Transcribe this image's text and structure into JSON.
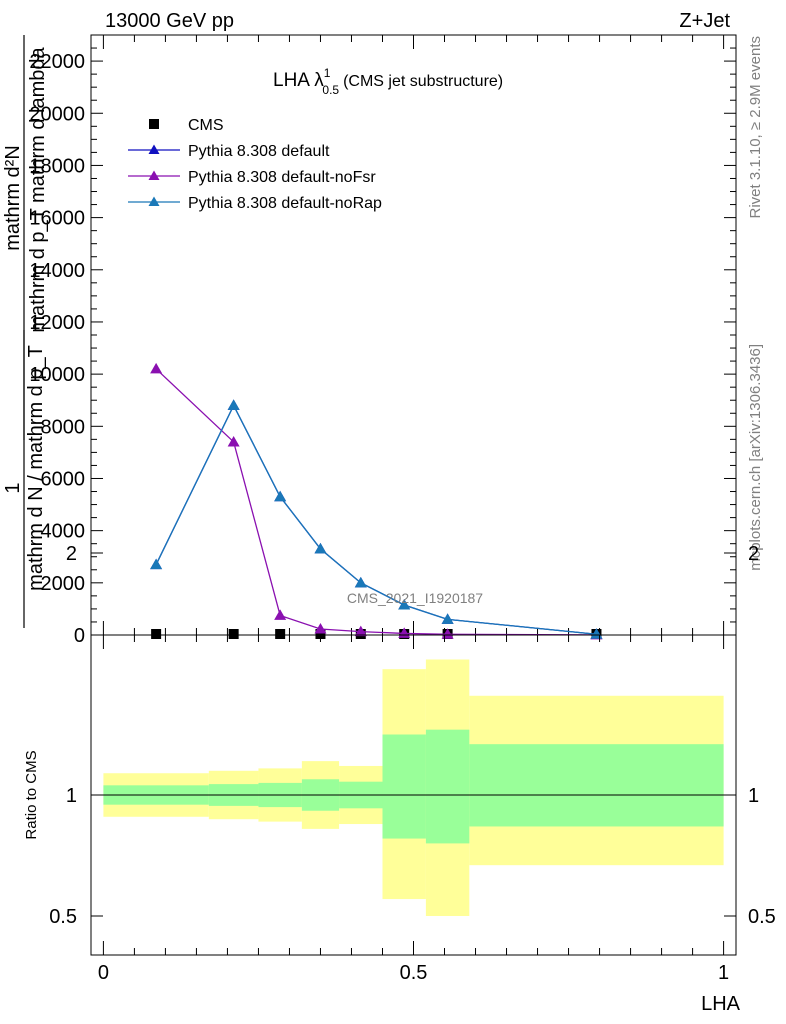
{
  "header": {
    "left": "13000 GeV pp",
    "right": "Z+Jet"
  },
  "side": {
    "rivet": "Rivet 3.1.10, ≥ 2.9M events",
    "mcplots": "mcplots.cern.ch [arXiv:1306.3436]"
  },
  "watermark": "CMS_2021_I1920187",
  "colors": {
    "cms": "#000000",
    "default": "#1010c0",
    "noFsr": "#8a10b0",
    "noRap": "#1a78b8",
    "band_outer": "#ffff99",
    "band_inner": "#99ff99"
  },
  "chart_data": [
    {
      "type": "line",
      "title": "LHA λ",
      "title_sup": "1",
      "title_sub": "0.5",
      "title_suffix": "(CMS jet substructure)",
      "ylabel_lines": [
        "mathrm d²N",
        "mathrm d p_T mathrm d lambda",
        "1",
        "mathrm d N / mathrm d p_T"
      ],
      "ylim": [
        0,
        23000
      ],
      "yticks": [
        0,
        2000,
        4000,
        6000,
        8000,
        10000,
        12000,
        14000,
        16000,
        18000,
        20000,
        22000
      ],
      "ytick_labels": [
        "0",
        "2000",
        "4000",
        "6000",
        "8000",
        "10000",
        "12000",
        "14000",
        "16000",
        "18000",
        "20000",
        "22000"
      ],
      "xlim": [
        -0.02,
        1.02
      ],
      "legend_position": "top-left",
      "series": [
        {
          "name": "CMS",
          "marker": "square",
          "x": [
            0.085,
            0.21,
            0.285,
            0.35,
            0.415,
            0.485,
            0.555,
            0.795
          ],
          "y": [
            0,
            0,
            0,
            0,
            0,
            0,
            0,
            0
          ]
        },
        {
          "name": "Pythia 8.308 default",
          "marker": "triangle",
          "x": [
            0.085,
            0.21,
            0.285,
            0.35,
            0.415,
            0.485,
            0.555,
            0.795
          ],
          "y": [
            2700,
            8800,
            5300,
            3300,
            2000,
            1150,
            600,
            30
          ]
        },
        {
          "name": "Pythia 8.308 default-noFsr",
          "marker": "triangle",
          "x": [
            0.085,
            0.21,
            0.285,
            0.35,
            0.415,
            0.485,
            0.555,
            0.795
          ],
          "y": [
            10200,
            7400,
            750,
            230,
            130,
            60,
            30,
            5
          ]
        },
        {
          "name": "Pythia 8.308 default-noRap",
          "marker": "triangle",
          "x": [
            0.085,
            0.21,
            0.285,
            0.35,
            0.415,
            0.485,
            0.555,
            0.795
          ],
          "y": [
            2700,
            8800,
            5300,
            3300,
            2000,
            1150,
            600,
            30
          ]
        }
      ]
    },
    {
      "type": "area",
      "ylabel": "Ratio to CMS",
      "xlabel": "LHA",
      "xlim": [
        -0.02,
        1.02
      ],
      "xticks": [
        0,
        0.5,
        1
      ],
      "xtick_labels": [
        "0",
        "0.5",
        "1"
      ],
      "ylim": [
        0.4,
        2.4
      ],
      "yticks": [
        0.5,
        1,
        2
      ],
      "ytick_labels": [
        "0.5",
        "1",
        "2"
      ],
      "bins": [
        {
          "lo": 0.0,
          "hi": 0.17,
          "outer": [
            0.91,
            1.09
          ],
          "inner": [
            0.96,
            1.04
          ]
        },
        {
          "lo": 0.17,
          "hi": 0.25,
          "outer": [
            0.9,
            1.1
          ],
          "inner": [
            0.955,
            1.045
          ]
        },
        {
          "lo": 0.25,
          "hi": 0.32,
          "outer": [
            0.89,
            1.11
          ],
          "inner": [
            0.95,
            1.05
          ]
        },
        {
          "lo": 0.32,
          "hi": 0.38,
          "outer": [
            0.86,
            1.14
          ],
          "inner": [
            0.935,
            1.065
          ]
        },
        {
          "lo": 0.38,
          "hi": 0.45,
          "outer": [
            0.88,
            1.12
          ],
          "inner": [
            0.945,
            1.055
          ]
        },
        {
          "lo": 0.45,
          "hi": 0.52,
          "outer": [
            0.57,
            1.52
          ],
          "inner": [
            0.82,
            1.25
          ]
        },
        {
          "lo": 0.52,
          "hi": 0.59,
          "outer": [
            0.5,
            1.56
          ],
          "inner": [
            0.8,
            1.27
          ]
        },
        {
          "lo": 0.59,
          "hi": 1.0,
          "outer": [
            0.71,
            1.41
          ],
          "inner": [
            0.87,
            1.21
          ]
        }
      ],
      "reference": 1
    }
  ]
}
